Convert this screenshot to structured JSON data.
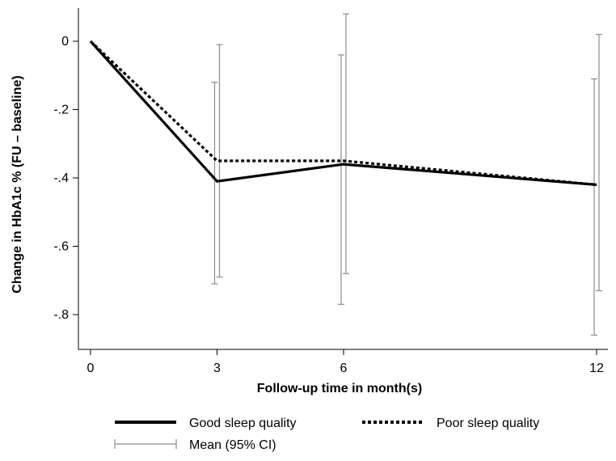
{
  "chart_data": {
    "type": "line",
    "title": "",
    "xlabel": "Follow-up time in month(s)",
    "ylabel": "Change in HbA1c % (FU – baseline)",
    "x": [
      0,
      3,
      6,
      12
    ],
    "x_ticks": [
      "0",
      "3",
      "6",
      "12"
    ],
    "xlim": [
      0,
      12
    ],
    "ylim": [
      -0.9,
      0.1
    ],
    "y_ticks": [
      {
        "value": 0,
        "label": "0"
      },
      {
        "value": -0.2,
        "label": "-.2"
      },
      {
        "value": -0.4,
        "label": "-.4"
      },
      {
        "value": -0.6,
        "label": "-.6"
      },
      {
        "value": -0.8,
        "label": "-.8"
      }
    ],
    "grid": false,
    "legend_position": "bottom",
    "series": [
      {
        "name": "Good sleep quality",
        "style": "solid",
        "color": "#000000",
        "values": [
          0,
          -0.41,
          -0.36,
          -0.42
        ],
        "ci_low": [
          null,
          -0.71,
          -0.77,
          -0.86
        ],
        "ci_high": [
          null,
          -0.12,
          -0.04,
          -0.11
        ]
      },
      {
        "name": "Poor sleep quality",
        "style": "dotted",
        "color": "#000000",
        "values": [
          0,
          -0.35,
          -0.35,
          -0.42
        ],
        "ci_low": [
          null,
          -0.69,
          -0.68,
          -0.73
        ],
        "ci_high": [
          null,
          -0.01,
          0.08,
          0.02
        ]
      }
    ],
    "ci_legend": "Mean (95% CI)",
    "ci_color": "#8c8c8c"
  }
}
